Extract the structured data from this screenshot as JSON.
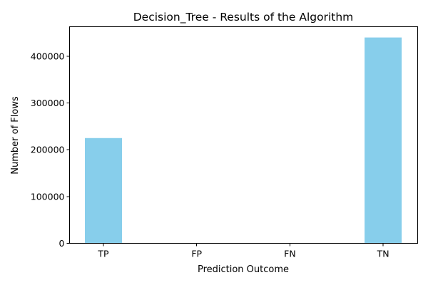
{
  "chart_data": {
    "type": "bar",
    "title": "Decision_Tree - Results of the Algorithm",
    "xlabel": "Prediction Outcome",
    "ylabel": "Number of Flows",
    "categories": [
      "TP",
      "FP",
      "FN",
      "TN"
    ],
    "values": [
      225000,
      0,
      0,
      440000
    ],
    "ylim": [
      0,
      463000
    ],
    "yticks": [
      0,
      100000,
      200000,
      300000,
      400000
    ],
    "bar_color": "#87CEEB",
    "grid": false,
    "legend": "none"
  }
}
